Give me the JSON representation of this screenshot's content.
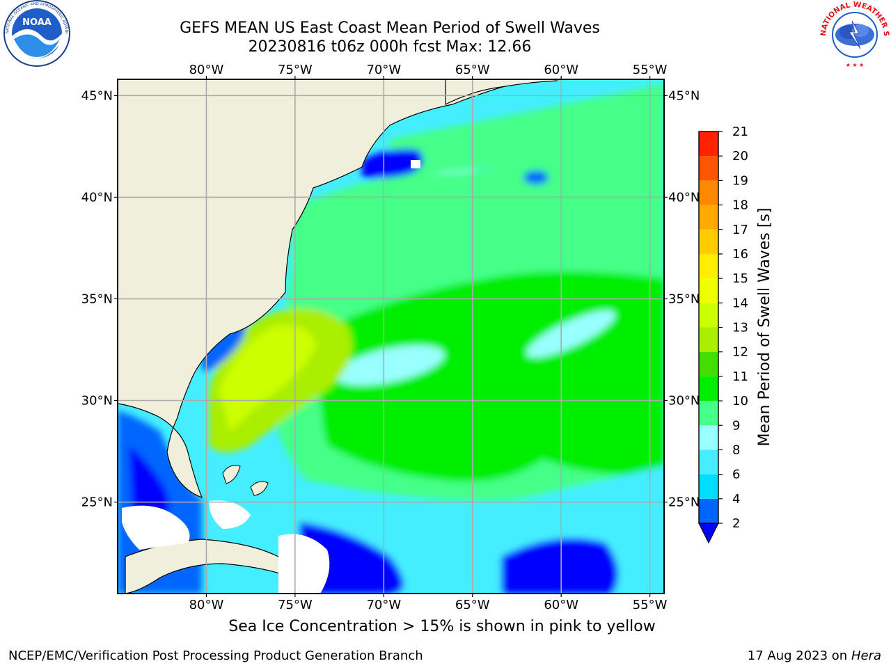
{
  "header": {
    "title_line1": "GEFS MEAN US East Coast Mean Period of Swell Waves",
    "title_line2": "20230816 t06z 000h fcst   Max: 12.66"
  },
  "logos": {
    "left": {
      "text": "NOAA",
      "ring_text": "NATIONAL OCEANIC AND ATMOSPHERIC ADMINISTRATION · U.S. DEPARTMENT OF COMMERCE"
    },
    "right": {
      "ring_text": "NATIONAL WEATHER SERVICE"
    }
  },
  "map": {
    "lon_ticks": [
      "80°W",
      "75°W",
      "70°W",
      "65°W",
      "60°W",
      "55°W"
    ],
    "lat_ticks": [
      "45°N",
      "40°N",
      "35°N",
      "30°N",
      "25°N"
    ],
    "lon_values": [
      -80,
      -75,
      -70,
      -65,
      -60,
      -55
    ],
    "lat_values": [
      45,
      40,
      35,
      30,
      25
    ],
    "extent": {
      "lon": [
        -85,
        -54.2
      ],
      "lat": [
        20.5,
        45.8
      ]
    }
  },
  "colorbar": {
    "label": "Mean Period of Swell Waves [s]",
    "ticks": [
      "21",
      "20",
      "19",
      "18",
      "17",
      "16",
      "15",
      "14",
      "13",
      "12",
      "11",
      "10",
      "9",
      "8",
      "6",
      "4",
      "2"
    ],
    "colors": [
      "#0000ff",
      "#0066ff",
      "#00ddff",
      "#44eeff",
      "#99ffff",
      "#44ff88",
      "#00ee00",
      "#44dd00",
      "#aaee00",
      "#ccff00",
      "#eeff00",
      "#ffee00",
      "#ffcc00",
      "#ffaa00",
      "#ff8800",
      "#ff5500",
      "#ff2200",
      "#ff0000"
    ]
  },
  "annotation": "Sea Ice Concentration > 15% is shown in pink to yellow",
  "footer": {
    "left": "NCEP/EMC/Verification Post Processing Product Generation Branch",
    "date": "17 Aug 2023 on",
    "machine": "Hera"
  }
}
